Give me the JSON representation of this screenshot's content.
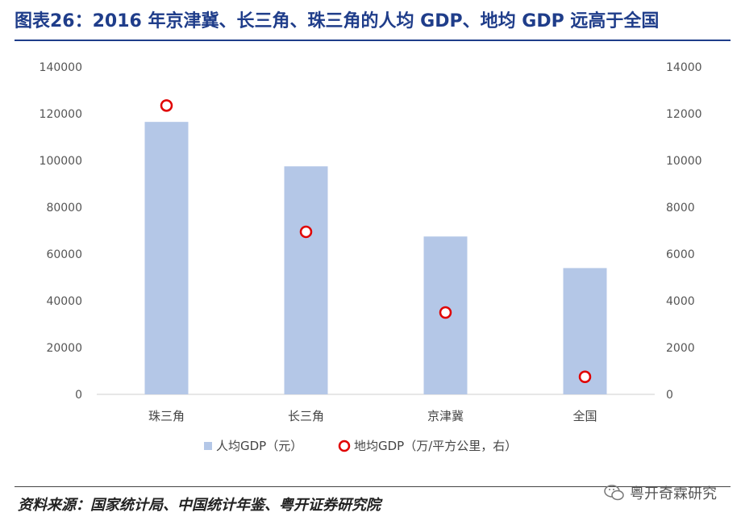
{
  "title": "图表26：2016 年京津冀、长三角、珠三角的人均 GDP、地均 GDP 远高于全国",
  "source": "资料来源：国家统计局、中国统计年鉴、粤开证券研究院",
  "watermark": "粤开奇霖研究",
  "colors": {
    "title": "#1f3d8a",
    "bar": "#b4c7e7",
    "dot": "#e00000"
  },
  "chart_data": {
    "type": "bar",
    "categories": [
      "珠三角",
      "长三角",
      "京津冀",
      "全国"
    ],
    "series": [
      {
        "name": "人均GDP（元）",
        "type": "bar",
        "axis": "left",
        "values": [
          116500,
          97500,
          67500,
          54000
        ]
      },
      {
        "name": "地均GDP（万/平方公里，右）",
        "type": "scatter",
        "axis": "right",
        "values": [
          12350,
          6950,
          3500,
          750
        ]
      }
    ],
    "ylim_left": [
      0,
      140000
    ],
    "ylim_right": [
      0,
      14000
    ],
    "yticks_left": [
      "0",
      "20000",
      "40000",
      "60000",
      "80000",
      "100000",
      "120000",
      "140000"
    ],
    "yticks_right": [
      "0",
      "2000",
      "4000",
      "6000",
      "8000",
      "10000",
      "12000",
      "14000"
    ],
    "grid": false,
    "legend_position": "bottom"
  }
}
